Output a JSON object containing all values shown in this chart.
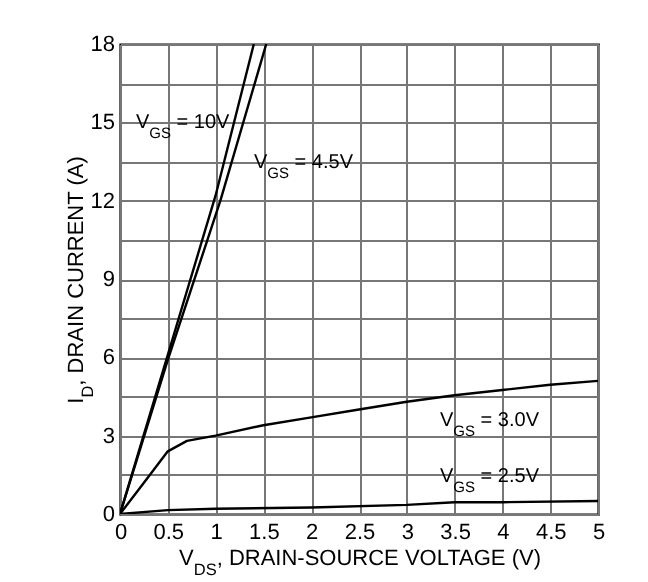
{
  "chart_data": {
    "type": "line",
    "xlabel": "V$_{DS}$, DRAIN-SOURCE VOLTAGE (V)",
    "ylabel": "I$_{D}$, DRAIN CURRENT (A)",
    "xlim": [
      0,
      5
    ],
    "ylim": [
      0,
      18
    ],
    "xticks": [
      0,
      0.5,
      1,
      1.5,
      2,
      2.5,
      3,
      3.5,
      4,
      4.5,
      5
    ],
    "yticks": [
      0,
      {
        "value": 1.5,
        "label": null
      },
      3,
      {
        "value": 4.5,
        "label": null
      },
      6,
      {
        "value": 7.5,
        "label": null
      },
      9,
      {
        "value": 10.5,
        "label": null
      },
      12,
      {
        "value": 13.5,
        "label": null
      },
      15,
      {
        "value": 16.5,
        "label": null
      },
      18
    ],
    "grid": true,
    "legend": false,
    "series": [
      {
        "name": "V$_{GS}$ = 10V",
        "color": "#000000",
        "x": [
          0,
          0.5,
          1,
          1.4
        ],
        "values": [
          0,
          6.1,
          12.2,
          18
        ]
      },
      {
        "name": "V$_{GS}$ = 4.5V",
        "color": "#000000",
        "x": [
          0,
          0.5,
          1.05,
          1.53
        ],
        "values": [
          0,
          5.9,
          12,
          18
        ]
      },
      {
        "name": "V$_{GS}$ = 3.0V",
        "color": "#000000",
        "x": [
          0,
          0.25,
          0.5,
          0.7,
          1,
          1.5,
          2,
          2.5,
          3,
          3.5,
          4,
          4.5,
          5
        ],
        "values": [
          0,
          1.2,
          2.4,
          2.8,
          3.0,
          3.4,
          3.7,
          4.0,
          4.3,
          4.55,
          4.75,
          4.95,
          5.1
        ]
      },
      {
        "name": "V$_{GS}$ = 2.5V",
        "color": "#000000",
        "x": [
          0,
          0.5,
          1,
          2,
          3,
          3.5,
          4,
          5
        ],
        "values": [
          0,
          0.15,
          0.2,
          0.25,
          0.35,
          0.45,
          0.45,
          0.5
        ]
      }
    ]
  }
}
